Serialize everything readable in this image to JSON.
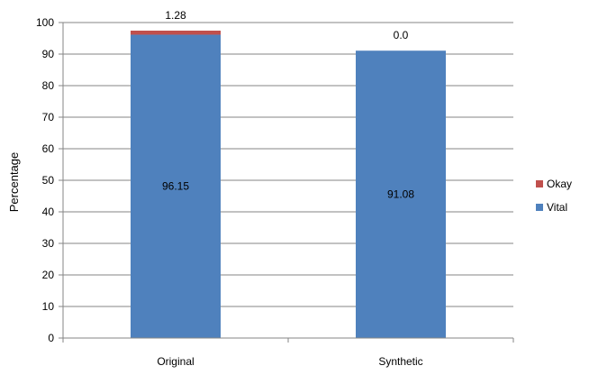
{
  "chart_data": {
    "type": "bar",
    "stacked": true,
    "categories": [
      "Original",
      "Synthetic"
    ],
    "series": [
      {
        "name": "Vital",
        "values": [
          96.15,
          91.08
        ],
        "labels": [
          "96.15",
          "91.08"
        ],
        "color": "#4F81BD"
      },
      {
        "name": "Okay",
        "values": [
          1.28,
          0.0
        ],
        "labels": [
          "1.28",
          "0.0"
        ],
        "color": "#C0504D"
      }
    ],
    "ylabel": "Percentage",
    "ylim": [
      0,
      100
    ],
    "yticks": [
      0,
      10,
      20,
      30,
      40,
      50,
      60,
      70,
      80,
      90,
      100
    ],
    "grid": true,
    "legend": "right"
  }
}
